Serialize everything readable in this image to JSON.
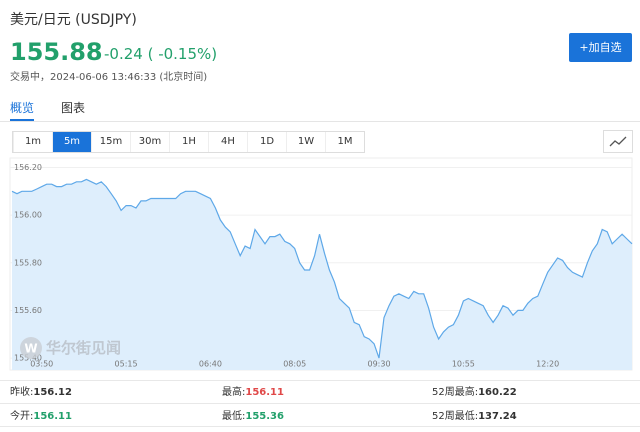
{
  "header": {
    "title": "美元/日元 (USDJPY)",
    "price": "155.88",
    "change": "-0.24 ( -0.15%)",
    "status": "交易中，2024-06-06 13:46:33 (北京时间)",
    "button": "+加自选"
  },
  "tabs": [
    "概览",
    "图表"
  ],
  "intervals": [
    "1m",
    "5m",
    "15m",
    "30m",
    "1H",
    "4H",
    "1D",
    "1W",
    "1M"
  ],
  "selected_interval": 1,
  "chart_data": {
    "type": "area",
    "color": "#5ea8e8",
    "fill": "#deeefc",
    "watermark": "华尔街见闻",
    "values": [
      156.1,
      156.09,
      156.1,
      156.1,
      156.1,
      156.11,
      156.12,
      156.13,
      156.13,
      156.12,
      156.12,
      156.13,
      156.13,
      156.14,
      156.14,
      156.15,
      156.14,
      156.13,
      156.14,
      156.12,
      156.09,
      156.06,
      156.02,
      156.04,
      156.04,
      156.03,
      156.06,
      156.06,
      156.07,
      156.07,
      156.07,
      156.07,
      156.07,
      156.07,
      156.09,
      156.1,
      156.1,
      156.1,
      156.09,
      156.08,
      156.07,
      156.03,
      155.98,
      155.95,
      155.93,
      155.88,
      155.83,
      155.87,
      155.86,
      155.94,
      155.91,
      155.88,
      155.91,
      155.91,
      155.92,
      155.89,
      155.88,
      155.86,
      155.8,
      155.77,
      155.77,
      155.83,
      155.92,
      155.84,
      155.77,
      155.72,
      155.65,
      155.63,
      155.61,
      155.55,
      155.54,
      155.49,
      155.48,
      155.46,
      155.4,
      155.57,
      155.62,
      155.66,
      155.67,
      155.66,
      155.65,
      155.68,
      155.67,
      155.67,
      155.61,
      155.53,
      155.48,
      155.51,
      155.53,
      155.54,
      155.58,
      155.64,
      155.65,
      155.64,
      155.63,
      155.62,
      155.58,
      155.55,
      155.58,
      155.62,
      155.61,
      155.58,
      155.6,
      155.6,
      155.63,
      155.65,
      155.66,
      155.71,
      155.76,
      155.79,
      155.82,
      155.81,
      155.78,
      155.76,
      155.75,
      155.74,
      155.8,
      155.85,
      155.88,
      155.94,
      155.93,
      155.88,
      155.9,
      155.92,
      155.9,
      155.88
    ],
    "xlim": [
      0,
      125
    ],
    "xticks": [
      {
        "value": 6,
        "label": "03:50"
      },
      {
        "value": 23,
        "label": "05:15"
      },
      {
        "value": 40,
        "label": "06:40"
      },
      {
        "value": 57,
        "label": "08:05"
      },
      {
        "value": 74,
        "label": "09:30"
      },
      {
        "value": 91,
        "label": "10:55"
      },
      {
        "value": 108,
        "label": "12:20"
      }
    ],
    "ylim": [
      155.35,
      156.24
    ],
    "yticks": [
      {
        "value": 155.4,
        "label": "155.40"
      },
      {
        "value": 155.6,
        "label": "155.60"
      },
      {
        "value": 155.8,
        "label": "155.80"
      },
      {
        "value": 156.0,
        "label": "156.00"
      },
      {
        "value": 156.2,
        "label": "156.20"
      }
    ],
    "grid": true
  },
  "stats": [
    [
      {
        "label": "昨收:",
        "value": "156.12",
        "color": "#333333"
      },
      {
        "label": "最高:",
        "value": "156.11",
        "color": "#e04848"
      },
      {
        "label": "52周最高:",
        "value": "160.22",
        "color": "#333333"
      }
    ],
    [
      {
        "label": "今开:",
        "value": "156.11",
        "color": "#22a06b"
      },
      {
        "label": "最低:",
        "value": "155.36",
        "color": "#22a06b"
      },
      {
        "label": "52周最低:",
        "value": "137.24",
        "color": "#333333"
      }
    ]
  ]
}
